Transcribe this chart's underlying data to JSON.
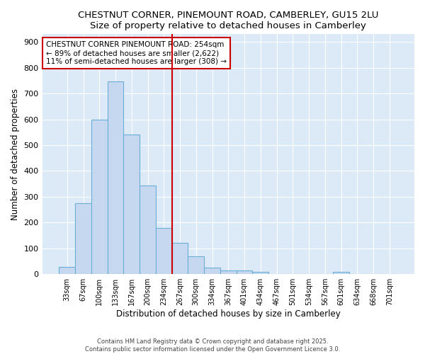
{
  "title": "CHESTNUT CORNER, PINEMOUNT ROAD, CAMBERLEY, GU15 2LU",
  "subtitle": "Size of property relative to detached houses in Camberley",
  "xlabel": "Distribution of detached houses by size in Camberley",
  "ylabel": "Number of detached properties",
  "categories": [
    "33sqm",
    "67sqm",
    "100sqm",
    "133sqm",
    "167sqm",
    "200sqm",
    "234sqm",
    "267sqm",
    "300sqm",
    "334sqm",
    "367sqm",
    "401sqm",
    "434sqm",
    "467sqm",
    "501sqm",
    "534sqm",
    "567sqm",
    "601sqm",
    "634sqm",
    "668sqm",
    "701sqm"
  ],
  "values": [
    27,
    275,
    600,
    748,
    540,
    343,
    178,
    120,
    68,
    25,
    15,
    15,
    10,
    0,
    0,
    0,
    0,
    8,
    0,
    0,
    0
  ],
  "bar_color": "#c5d8f0",
  "bar_edge_color": "#6baed6",
  "background_color": "#ffffff",
  "plot_bg_color": "#dce9f7",
  "grid_color": "#ffffff",
  "vline_color": "#cc0000",
  "vline_pos": 6.5,
  "annotation_text": "CHESTNUT CORNER PINEMOUNT ROAD: 254sqm\n← 89% of detached houses are smaller (2,622)\n11% of semi-detached houses are larger (308) →",
  "annotation_box_color": "#ffffff",
  "annotation_box_edge": "#cc0000",
  "footer_line1": "Contains HM Land Registry data © Crown copyright and database right 2025.",
  "footer_line2": "Contains public sector information licensed under the Open Government Licence 3.0.",
  "ylim": [
    0,
    930
  ],
  "yticks": [
    0,
    100,
    200,
    300,
    400,
    500,
    600,
    700,
    800,
    900
  ]
}
